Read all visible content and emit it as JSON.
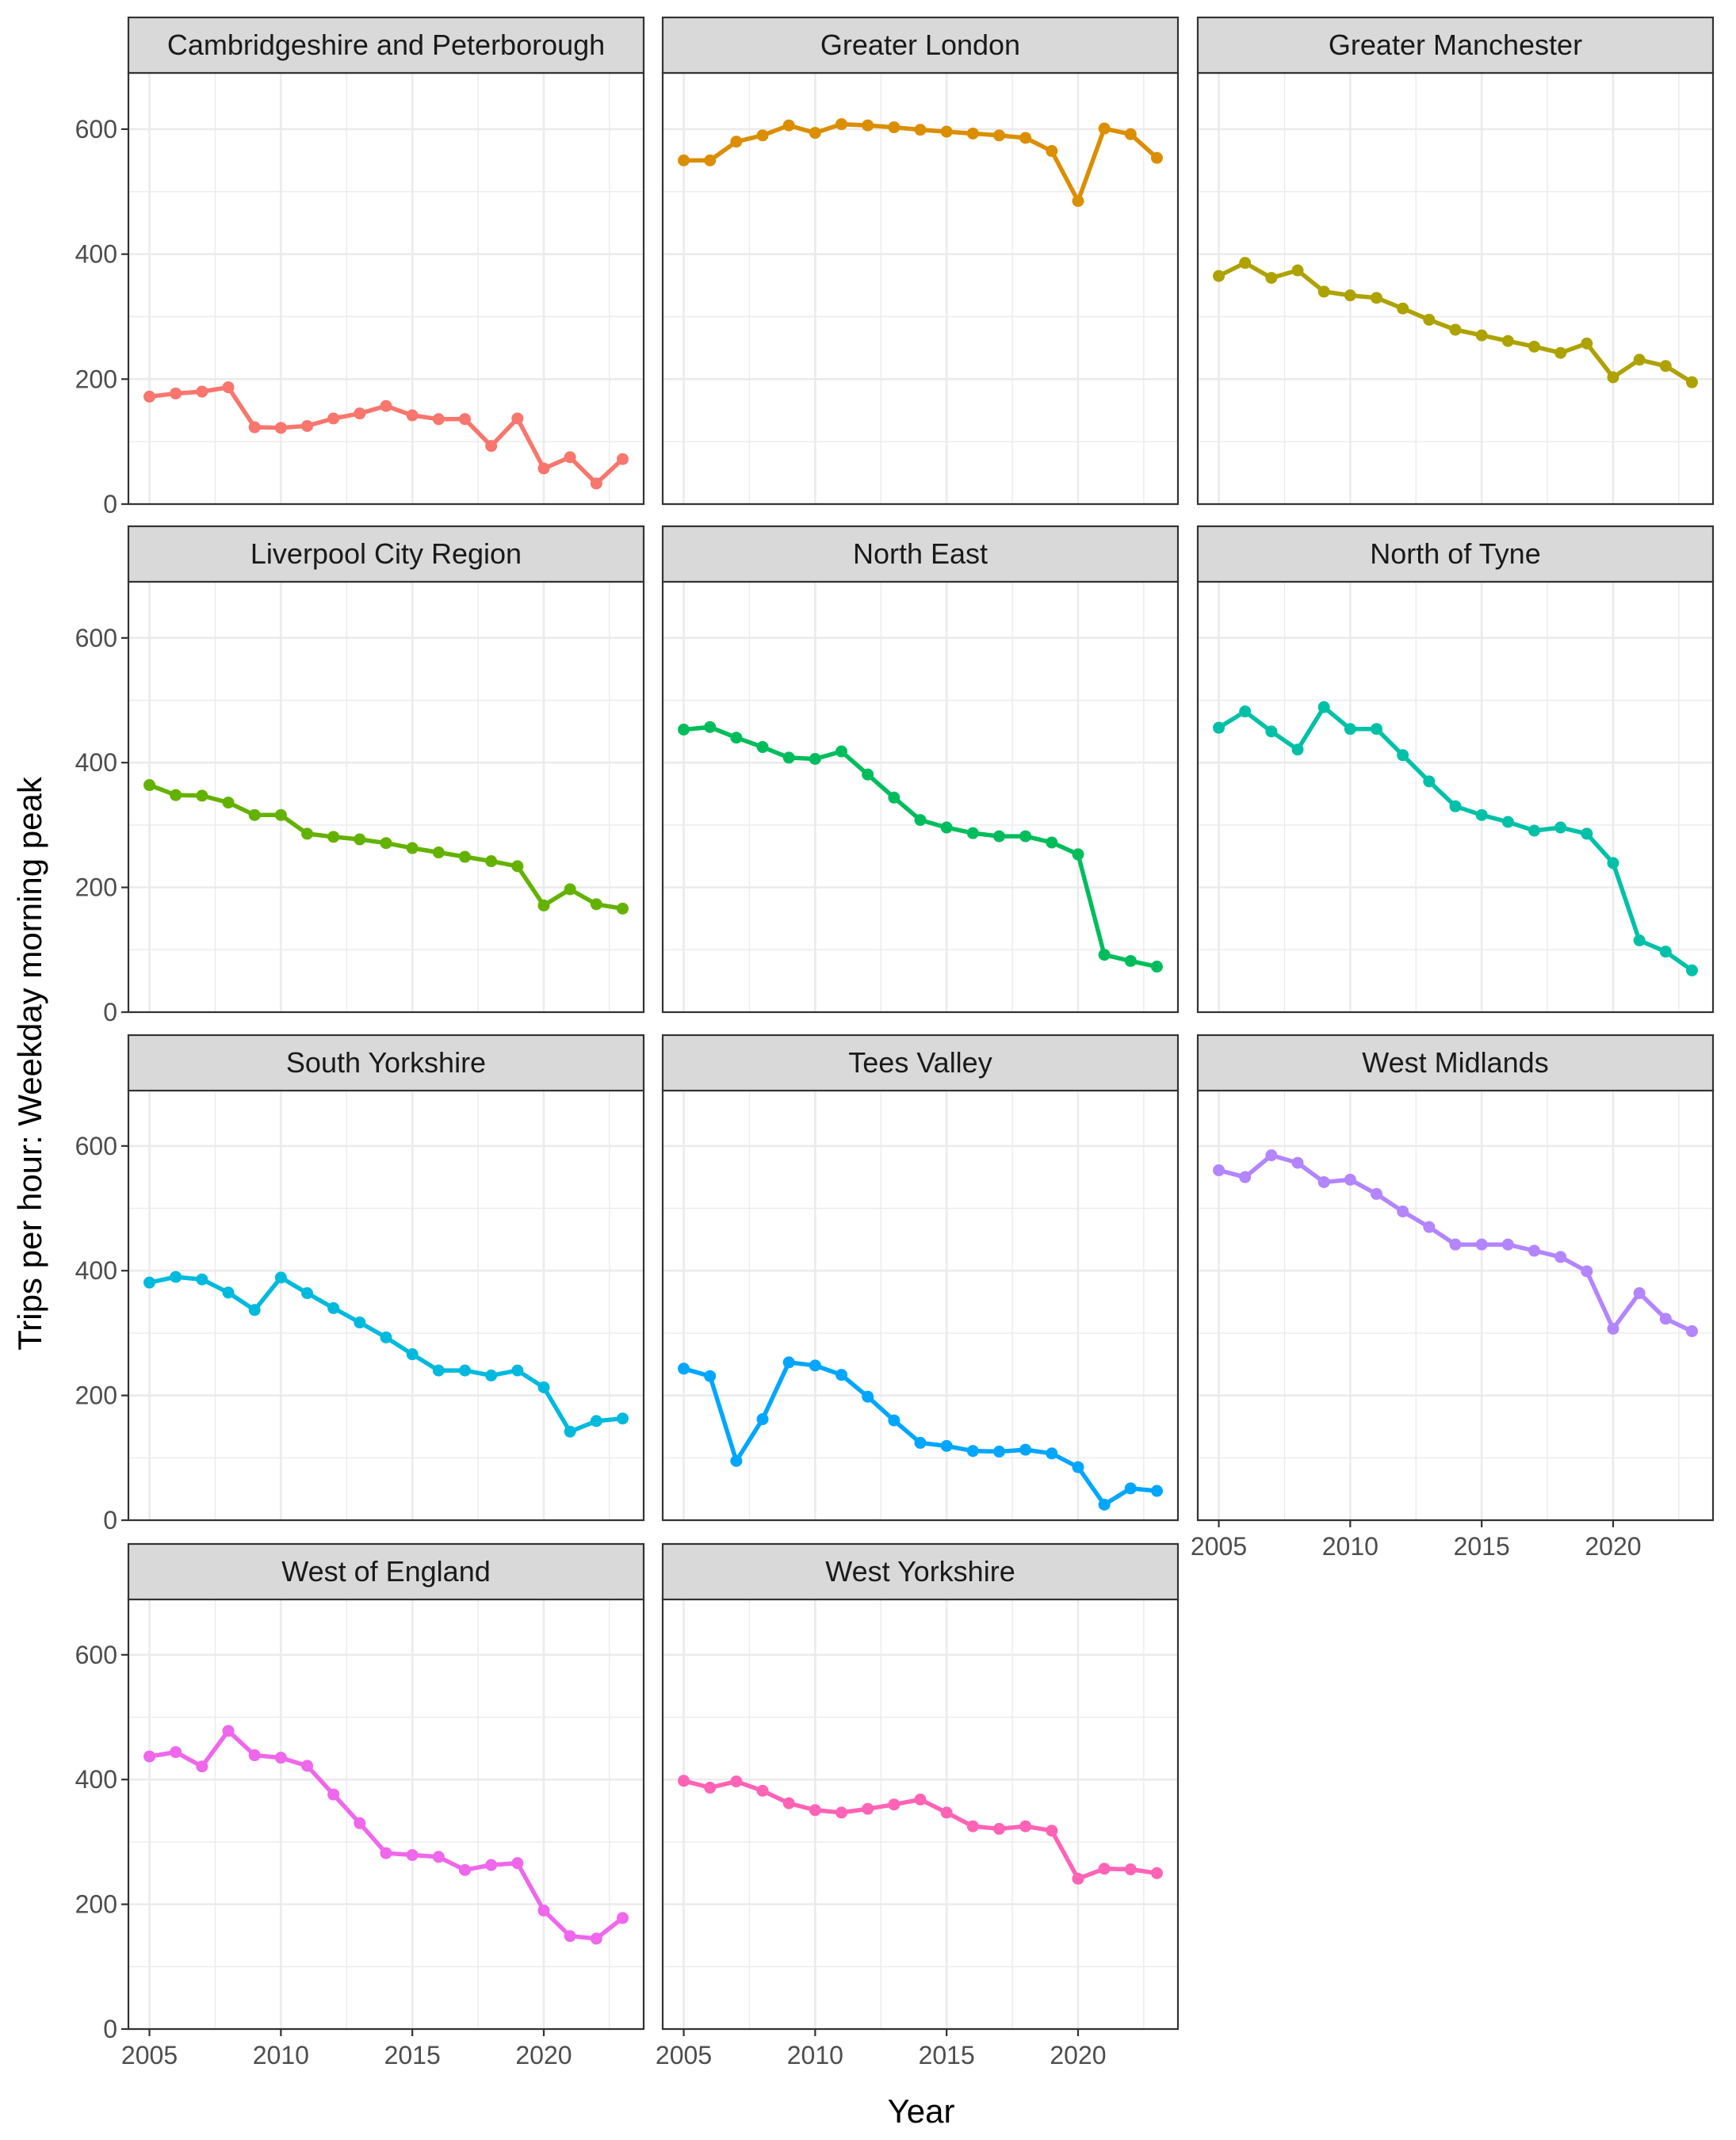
{
  "chart_data": {
    "type": "line",
    "facet": true,
    "xlabel": "Year",
    "ylabel": "Trips per hour: Weekday morning peak",
    "xlim": [
      2004.2,
      2023.8
    ],
    "ylim": [
      0,
      690
    ],
    "x_ticks": [
      2005,
      2010,
      2015,
      2020
    ],
    "y_ticks": [
      0,
      200,
      400,
      600
    ],
    "grid": true,
    "legend": "none",
    "x": [
      2005,
      2006,
      2007,
      2008,
      2009,
      2010,
      2011,
      2012,
      2013,
      2014,
      2015,
      2016,
      2017,
      2018,
      2019,
      2020,
      2021,
      2022,
      2023
    ],
    "series": [
      {
        "name": "Cambridgeshire and Peterborough",
        "color": "#F8766D",
        "values": [
          172,
          177,
          180,
          187,
          123,
          122,
          125,
          137,
          145,
          157,
          142,
          136,
          136,
          93,
          137,
          57,
          75,
          33,
          72
        ]
      },
      {
        "name": "Greater London",
        "color": "#DB8E00",
        "values": [
          550,
          550,
          580,
          590,
          606,
          594,
          608,
          606,
          603,
          599,
          596,
          593,
          590,
          586,
          565,
          485,
          601,
          592,
          554
        ]
      },
      {
        "name": "Greater Manchester",
        "color": "#AEA200",
        "values": [
          365,
          386,
          362,
          374,
          340,
          334,
          330,
          313,
          295,
          279,
          270,
          261,
          252,
          242,
          257,
          203,
          231,
          221,
          195
        ]
      },
      {
        "name": "Liverpool City Region",
        "color": "#64B200",
        "values": [
          364,
          348,
          347,
          336,
          316,
          316,
          286,
          281,
          277,
          271,
          263,
          256,
          249,
          242,
          234,
          171,
          197,
          173,
          166
        ]
      },
      {
        "name": "North East",
        "color": "#00BD5C",
        "values": [
          453,
          457,
          440,
          425,
          408,
          406,
          418,
          381,
          344,
          308,
          296,
          287,
          282,
          282,
          272,
          253,
          92,
          82,
          73
        ]
      },
      {
        "name": "North of Tyne",
        "color": "#00C1A7",
        "values": [
          456,
          482,
          450,
          421,
          489,
          454,
          454,
          412,
          370,
          330,
          316,
          305,
          291,
          296,
          286,
          239,
          115,
          97,
          67
        ]
      },
      {
        "name": "South Yorkshire",
        "color": "#00BADE",
        "values": [
          381,
          390,
          386,
          365,
          337,
          389,
          364,
          340,
          317,
          293,
          266,
          240,
          240,
          232,
          240,
          213,
          142,
          159,
          163
        ]
      },
      {
        "name": "Tees Valley",
        "color": "#00A6FF",
        "values": [
          243,
          231,
          95,
          162,
          253,
          248,
          233,
          198,
          160,
          124,
          119,
          111,
          110,
          113,
          107,
          85,
          25,
          51,
          47
        ]
      },
      {
        "name": "West Midlands",
        "color": "#B385FF",
        "values": [
          561,
          550,
          585,
          573,
          542,
          546,
          523,
          495,
          470,
          442,
          442,
          442,
          432,
          422,
          399,
          307,
          364,
          323,
          303
        ]
      },
      {
        "name": "West of England",
        "color": "#EF67EB",
        "values": [
          437,
          444,
          421,
          478,
          439,
          435,
          422,
          376,
          330,
          282,
          279,
          276,
          255,
          263,
          266,
          190,
          149,
          145,
          178
        ]
      },
      {
        "name": "West Yorkshire",
        "color": "#FF63B6",
        "values": [
          398,
          387,
          397,
          382,
          362,
          351,
          347,
          353,
          360,
          368,
          347,
          325,
          321,
          325,
          318,
          241,
          257,
          256,
          250
        ]
      }
    ]
  }
}
